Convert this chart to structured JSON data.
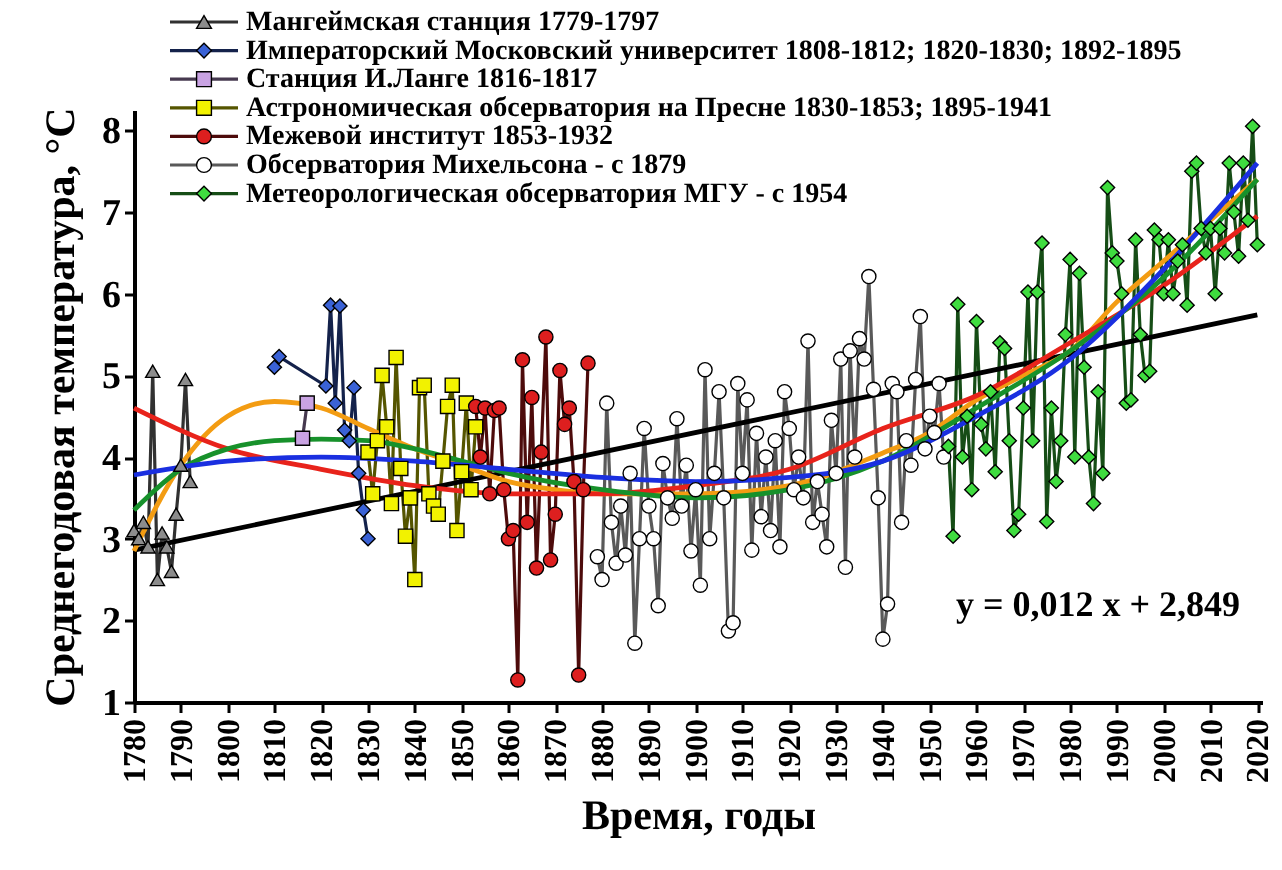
{
  "chart_data": {
    "type": "line",
    "xlabel": "Время, годы",
    "ylabel": "Среднегодовая температура, °С",
    "xlim": [
      1780,
      2021
    ],
    "ylim": [
      1,
      8.25
    ],
    "xticks": [
      1780,
      1790,
      1800,
      1810,
      1820,
      1830,
      1840,
      1850,
      1860,
      1870,
      1880,
      1890,
      1900,
      1910,
      1920,
      1930,
      1940,
      1950,
      1960,
      1970,
      1980,
      1990,
      2000,
      2010,
      2020
    ],
    "yticks": [
      1,
      2,
      3,
      4,
      5,
      6,
      7,
      8
    ],
    "grid": false,
    "legend": "top left",
    "annotations": [
      "y = 0,012 x + 2,849"
    ],
    "series": [
      {
        "name": "Мангеймская станция 1779-1797",
        "color": "#8c8c8c",
        "marker": "triangle",
        "x": [
          1780,
          1781,
          1782,
          1783,
          1784,
          1785,
          1786,
          1787,
          1788,
          1789,
          1790,
          1791,
          1792
        ],
        "values": [
          3.1,
          3.0,
          3.2,
          2.9,
          5.05,
          2.5,
          3.07,
          2.9,
          2.6,
          3.3,
          3.9,
          4.95,
          3.7
        ]
      },
      {
        "name": "Императорский Московский университет 1808-1812; 1820-1830; 1892-1895",
        "color": "#3a62d6",
        "marker": "diamond",
        "x": [
          1810,
          1811,
          1821,
          1822,
          1823,
          1824,
          1825,
          1826,
          1827,
          1828,
          1829,
          1830
        ],
        "values": [
          5.1,
          5.23,
          4.87,
          5.86,
          4.66,
          5.85,
          4.33,
          4.2,
          4.85,
          3.8,
          3.35,
          3.0
        ]
      },
      {
        "name": "Станция И.Ланге 1816-1817",
        "color": "#c9a3e3",
        "marker": "square",
        "x": [
          1816,
          1817
        ],
        "values": [
          4.23,
          4.66
        ]
      },
      {
        "name": "Астрономическая обсерватория на Пресне 1830-1853; 1895-1941",
        "color": "#f2f200",
        "marker": "square",
        "x": [
          1830,
          1831,
          1832,
          1833,
          1834,
          1835,
          1836,
          1837,
          1838,
          1839,
          1840,
          1841,
          1842,
          1843,
          1844,
          1845,
          1846,
          1847,
          1848,
          1849,
          1850,
          1851,
          1852,
          1853
        ],
        "values": [
          4.06,
          3.55,
          4.2,
          5.0,
          4.37,
          3.43,
          5.22,
          3.86,
          3.03,
          3.5,
          2.5,
          4.85,
          4.88,
          3.55,
          3.4,
          3.3,
          3.95,
          4.62,
          4.88,
          3.1,
          3.82,
          4.66,
          3.6,
          4.37
        ]
      },
      {
        "name": "Межевой институт 1853-1932",
        "color": "#dd1f1f",
        "marker": "circle",
        "x": [
          1853,
          1854,
          1855,
          1856,
          1857,
          1858,
          1859,
          1860,
          1861,
          1862,
          1863,
          1864,
          1865,
          1866,
          1867,
          1868,
          1869,
          1870,
          1871,
          1872,
          1873,
          1874,
          1875,
          1876,
          1877
        ],
        "values": [
          4.62,
          4.0,
          4.6,
          3.55,
          4.57,
          4.6,
          3.6,
          3.0,
          3.1,
          1.27,
          5.19,
          3.2,
          4.73,
          2.64,
          4.06,
          5.47,
          2.74,
          3.3,
          5.06,
          4.4,
          4.6,
          3.7,
          1.33,
          3.6,
          5.15
        ]
      },
      {
        "name": "Обсерватория Михельсона - с 1879",
        "color": "#ffffff",
        "marker": "circle",
        "x": [
          1879,
          1880,
          1881,
          1882,
          1883,
          1884,
          1885,
          1886,
          1887,
          1888,
          1889,
          1890,
          1891,
          1892,
          1893,
          1894,
          1895,
          1896,
          1897,
          1898,
          1899,
          1900,
          1901,
          1902,
          1903,
          1904,
          1905,
          1906,
          1907,
          1908,
          1909,
          1910,
          1911,
          1912,
          1913,
          1914,
          1915,
          1916,
          1917,
          1918,
          1919,
          1920,
          1921,
          1922,
          1923,
          1924,
          1925,
          1926,
          1927,
          1928,
          1929,
          1930,
          1931,
          1932,
          1933,
          1934,
          1935,
          1936,
          1937,
          1938,
          1939,
          1940,
          1941,
          1942,
          1943,
          1944,
          1945,
          1946,
          1947,
          1948,
          1949,
          1950,
          1951,
          1952,
          1953
        ],
        "values": [
          2.78,
          2.5,
          4.66,
          3.2,
          2.7,
          3.4,
          2.8,
          3.8,
          1.72,
          3.0,
          4.35,
          3.4,
          3.0,
          2.18,
          3.92,
          3.5,
          3.25,
          4.47,
          3.4,
          3.9,
          2.85,
          3.6,
          2.43,
          5.07,
          3.0,
          3.8,
          4.8,
          3.5,
          1.87,
          1.97,
          4.9,
          3.8,
          4.7,
          2.86,
          4.29,
          3.27,
          4.0,
          3.1,
          4.2,
          2.9,
          4.8,
          4.35,
          3.6,
          4.0,
          3.5,
          5.42,
          3.2,
          3.7,
          3.3,
          2.9,
          4.45,
          3.8,
          5.2,
          2.65,
          5.3,
          4.0,
          5.45,
          5.2,
          6.21,
          4.83,
          3.5,
          1.77,
          2.2,
          4.9,
          4.8,
          3.2,
          4.2,
          3.9,
          4.95,
          5.72,
          4.1,
          4.5,
          4.3,
          4.9,
          4.0
        ]
      },
      {
        "name": "Метеорологическая обсерватория МГУ - с 1954",
        "color": "#3fdc3f",
        "marker": "diamond",
        "x": [
          1954,
          1955,
          1956,
          1957,
          1958,
          1959,
          1960,
          1961,
          1962,
          1963,
          1964,
          1965,
          1966,
          1967,
          1968,
          1969,
          1970,
          1971,
          1972,
          1973,
          1974,
          1975,
          1976,
          1977,
          1978,
          1979,
          1980,
          1981,
          1982,
          1983,
          1984,
          1985,
          1986,
          1987,
          1988,
          1989,
          1990,
          1991,
          1992,
          1993,
          1994,
          1995,
          1996,
          1997,
          1998,
          1999,
          2000,
          2001,
          2002,
          2003,
          2004,
          2005,
          2006,
          2007,
          2008,
          2009,
          2010,
          2011,
          2012,
          2013,
          2014,
          2015,
          2016,
          2017,
          2018,
          2019,
          2020
        ],
        "values": [
          4.13,
          3.03,
          5.87,
          4.0,
          4.5,
          3.6,
          5.66,
          4.4,
          4.1,
          4.8,
          3.82,
          5.4,
          5.33,
          4.2,
          3.1,
          3.3,
          4.6,
          6.02,
          4.2,
          6.02,
          6.62,
          3.21,
          4.6,
          3.7,
          4.2,
          5.5,
          6.42,
          4.0,
          6.25,
          5.1,
          4.0,
          3.43,
          4.8,
          3.8,
          7.3,
          6.5,
          6.4,
          6.0,
          4.66,
          4.7,
          6.66,
          5.5,
          5.0,
          5.05,
          6.78,
          6.66,
          6.0,
          6.66,
          6.0,
          6.4,
          6.6,
          5.86,
          7.5,
          7.6,
          6.8,
          6.5,
          6.8,
          6.0,
          6.8,
          6.5,
          7.6,
          7.0,
          6.46,
          7.6,
          6.9,
          8.05,
          6.6
        ]
      },
      {
        "type": "line",
        "color": "#000000",
        "marker": "none",
        "x": [
          1780,
          2020
        ],
        "values": [
          2.86,
          5.74
        ]
      },
      {
        "type": "line",
        "color": "#f39c12",
        "marker": "none",
        "x": [
          1780,
          1790,
          1800,
          1810,
          1820,
          1830,
          1840,
          1850,
          1860,
          1870,
          1880,
          1900,
          1920,
          1940,
          1950,
          1960,
          1970,
          1980,
          1990,
          2000,
          2010,
          2020
        ],
        "values": [
          2.85,
          3.9,
          4.5,
          4.68,
          4.6,
          4.35,
          4.1,
          3.9,
          3.7,
          3.6,
          3.55,
          3.55,
          3.65,
          4.05,
          4.3,
          4.7,
          5.0,
          5.3,
          5.9,
          6.4,
          6.9,
          7.4
        ]
      },
      {
        "type": "line",
        "color": "#e8231b",
        "marker": "none",
        "x": [
          1780,
          1800,
          1820,
          1840,
          1860,
          1880,
          1900,
          1920,
          1940,
          1960,
          1980,
          2000,
          2020
        ],
        "values": [
          4.6,
          4.1,
          3.85,
          3.65,
          3.55,
          3.55,
          3.65,
          3.85,
          4.35,
          4.75,
          5.4,
          6.1,
          6.95
        ]
      },
      {
        "type": "line",
        "color": "#17912b",
        "marker": "none",
        "x": [
          1780,
          1790,
          1800,
          1810,
          1820,
          1830,
          1840,
          1850,
          1860,
          1880,
          1900,
          1920,
          1940,
          1960,
          1980,
          2000,
          2020
        ],
        "values": [
          3.35,
          3.85,
          4.1,
          4.2,
          4.22,
          4.2,
          4.1,
          3.95,
          3.8,
          3.6,
          3.5,
          3.6,
          3.95,
          4.6,
          5.3,
          6.2,
          7.4
        ]
      },
      {
        "type": "line",
        "color": "#1a2fe0",
        "marker": "none",
        "x": [
          1780,
          1800,
          1820,
          1840,
          1860,
          1880,
          1900,
          1920,
          1940,
          1960,
          1980,
          2000,
          2020
        ],
        "values": [
          3.78,
          3.95,
          4.0,
          3.95,
          3.85,
          3.75,
          3.7,
          3.75,
          3.95,
          4.5,
          5.2,
          6.3,
          7.6
        ]
      }
    ]
  }
}
